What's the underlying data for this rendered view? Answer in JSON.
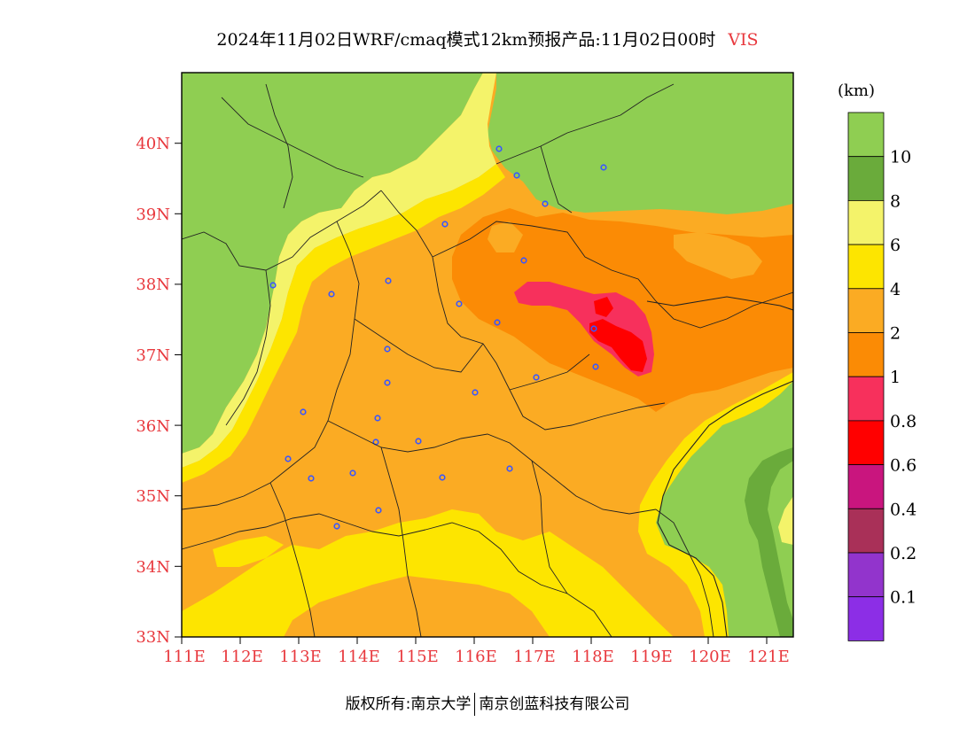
{
  "header": {
    "title": "2024年11月02日WRF/cmaq模式12km预报产品:11月02日00时",
    "variable": "VIS"
  },
  "map": {
    "lat_labels": [
      "40N",
      "39N",
      "38N",
      "37N",
      "36N",
      "35N",
      "34N",
      "33N"
    ],
    "lon_labels": [
      "111E",
      "112E",
      "113E",
      "114E",
      "115E",
      "116E",
      "117E",
      "118E",
      "119E",
      "120E",
      "121E"
    ],
    "label_color": "#e8383d"
  },
  "legend": {
    "unit": "(km)",
    "bins": [
      {
        "label": "",
        "color": "#8fce52"
      },
      {
        "label": "10",
        "color": "#6aab3b"
      },
      {
        "label": "8",
        "color": "#f4f36a"
      },
      {
        "label": "6",
        "color": "#fde500"
      },
      {
        "label": "4",
        "color": "#fbab23"
      },
      {
        "label": "2",
        "color": "#fb8b05"
      },
      {
        "label": "1",
        "color": "#f7305c"
      },
      {
        "label": "0.8",
        "color": "#ff0000"
      },
      {
        "label": "0.6",
        "color": "#c9157e"
      },
      {
        "label": "0.4",
        "color": "#a93058"
      },
      {
        "label": "0.2",
        "color": "#9234cc"
      },
      {
        "label": "0.1",
        "color": "#8c2ee6"
      }
    ]
  },
  "footer": {
    "rights": "版权所有:南京大学",
    "company": "南京创蓝科技有限公司"
  }
}
